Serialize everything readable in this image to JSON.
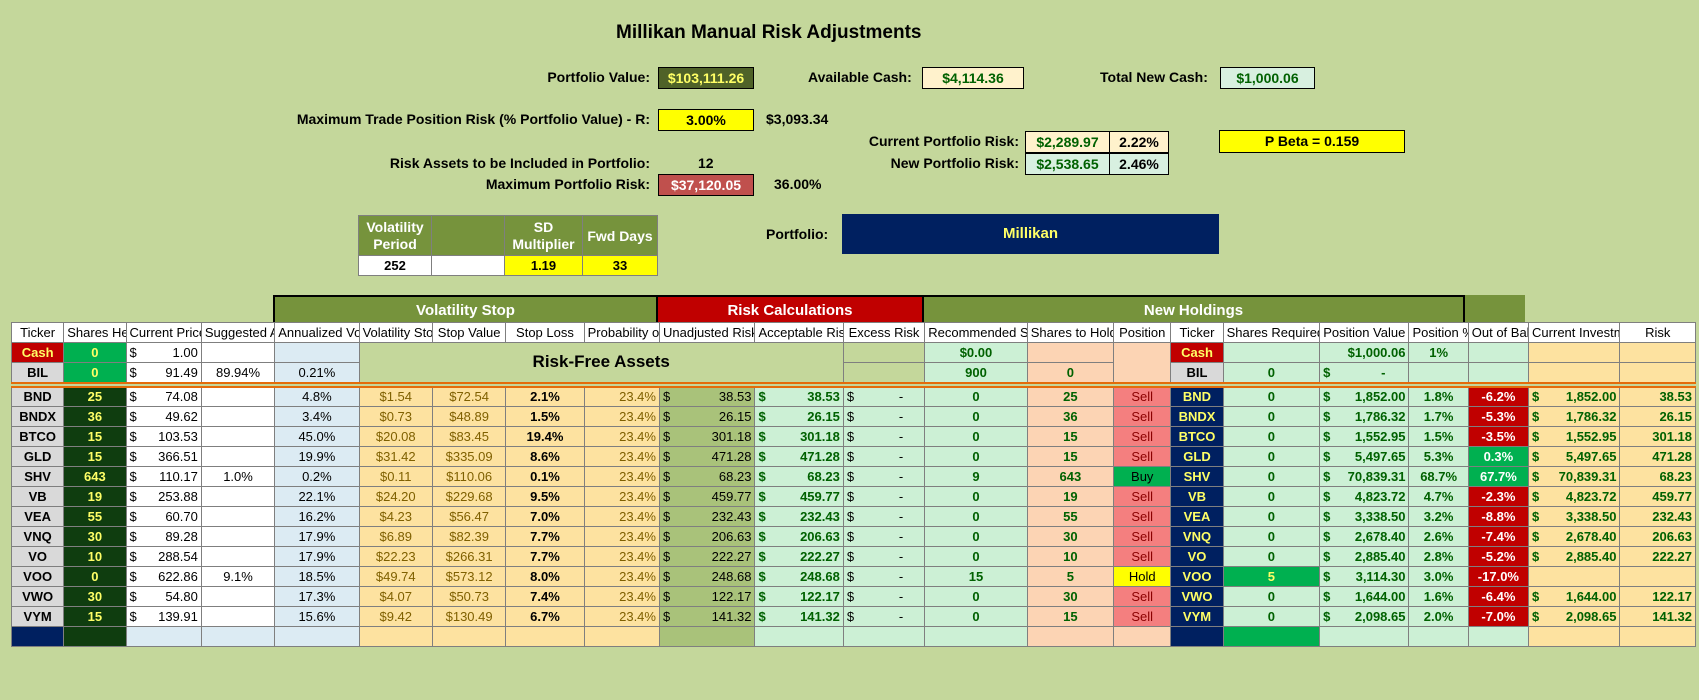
{
  "title": "Millikan Manual Risk Adjustments",
  "top": {
    "portfolio_value_label": "Portfolio Value:",
    "portfolio_value": "$103,111.26",
    "available_cash_label": "Available Cash:",
    "available_cash": "$4,114.36",
    "total_new_cash_label": "Total New Cash:",
    "total_new_cash": "$1,000.06",
    "max_trade_label": "Maximum Trade Position Risk (% Portfolio Value) - R:",
    "max_trade_pct": "3.00%",
    "max_trade_amt": "$3,093.34",
    "risk_assets_label": "Risk Assets to be Included in Portfolio:",
    "risk_assets": "12",
    "max_portfolio_risk_label": "Maximum Portfolio Risk:",
    "max_portfolio_risk": "$37,120.05",
    "max_portfolio_risk_pct": "36.00%",
    "current_risk_label": "Current Portfolio Risk:",
    "current_risk": "$2,289.97",
    "current_risk_pct": "2.22%",
    "new_risk_label": "New Portfolio Risk:",
    "new_risk": "$2,538.65",
    "new_risk_pct": "2.46%",
    "pbeta": "P Beta = 0.159",
    "portfolio_label": "Portfolio:",
    "portfolio_name": "Millikan"
  },
  "params": {
    "h1": "Volatility Period",
    "h2": "",
    "h3": "SD Multiplier",
    "h4": "Fwd Days",
    "v1": "252",
    "v2": "",
    "v3": "1.19",
    "v4": "33"
  },
  "groups": {
    "vol_stop": "Volatility Stop",
    "risk_calc": "Risk Calculations",
    "new_holdings": "New Holdings"
  },
  "headers": [
    "Ticker",
    "Shares Held",
    "Current Price",
    "Suggested Allocation",
    "Annualized Volatility",
    "Volatility Stop",
    "Stop Value",
    "Stop Loss",
    "Probability of Stop",
    "Unadjusted Risk",
    "Acceptable Risk",
    "Excess Risk",
    "Recommended Shares from Auto",
    "Shares to Hold",
    "Position",
    "Ticker",
    "Shares Required",
    "Position Value",
    "Position %",
    "Out of Balance",
    "Current Investments",
    "Risk"
  ],
  "riskfree_label": "Risk-Free Assets",
  "cash_row": {
    "ticker": "Cash",
    "shares": "0",
    "price": "1.00",
    "rec": "$0.00",
    "ticker2": "Cash",
    "pos_value": "$1,000.06",
    "pos_pct": "1%"
  },
  "bil_row": {
    "ticker": "BIL",
    "shares": "0",
    "price": "91.49",
    "alloc": "89.94%",
    "vol": "0.21%",
    "rec": "900",
    "hold": "0",
    "ticker2": "BIL",
    "req": "0",
    "pos_value": "-"
  },
  "rows": [
    {
      "t": "BND",
      "sh": "25",
      "pr": "74.08",
      "al": "",
      "vol": "4.8%",
      "vs": "$1.54",
      "sv": "$72.54",
      "sl": "2.1%",
      "ps": "23.4%",
      "ur": "38.53",
      "ar": "38.53",
      "er": "-",
      "rec": "0",
      "hold": "25",
      "pos": "Sell",
      "req": "0",
      "pv": "1,852.00",
      "pp": "1.8%",
      "ob": "-6.2%",
      "ci": "1,852.00",
      "rk": "38.53"
    },
    {
      "t": "BNDX",
      "sh": "36",
      "pr": "49.62",
      "al": "",
      "vol": "3.4%",
      "vs": "$0.73",
      "sv": "$48.89",
      "sl": "1.5%",
      "ps": "23.4%",
      "ur": "26.15",
      "ar": "26.15",
      "er": "-",
      "rec": "0",
      "hold": "36",
      "pos": "Sell",
      "req": "0",
      "pv": "1,786.32",
      "pp": "1.7%",
      "ob": "-5.3%",
      "ci": "1,786.32",
      "rk": "26.15"
    },
    {
      "t": "BTCO",
      "sh": "15",
      "pr": "103.53",
      "al": "",
      "vol": "45.0%",
      "vs": "$20.08",
      "sv": "$83.45",
      "sl": "19.4%",
      "ps": "23.4%",
      "ur": "301.18",
      "ar": "301.18",
      "er": "-",
      "rec": "0",
      "hold": "15",
      "pos": "Sell",
      "req": "0",
      "pv": "1,552.95",
      "pp": "1.5%",
      "ob": "-3.5%",
      "ci": "1,552.95",
      "rk": "301.18"
    },
    {
      "t": "GLD",
      "sh": "15",
      "pr": "366.51",
      "al": "",
      "vol": "19.9%",
      "vs": "$31.42",
      "sv": "$335.09",
      "sl": "8.6%",
      "ps": "23.4%",
      "ur": "471.28",
      "ar": "471.28",
      "er": "-",
      "rec": "0",
      "hold": "15",
      "pos": "Sell",
      "req": "0",
      "pv": "5,497.65",
      "pp": "5.3%",
      "ob": "0.3%",
      "ci": "5,497.65",
      "rk": "471.28"
    },
    {
      "t": "SHV",
      "sh": "643",
      "pr": "110.17",
      "al": "1.0%",
      "vol": "0.2%",
      "vs": "$0.11",
      "sv": "$110.06",
      "sl": "0.1%",
      "ps": "23.4%",
      "ur": "68.23",
      "ar": "68.23",
      "er": "-",
      "rec": "9",
      "hold": "643",
      "pos": "Buy",
      "req": "0",
      "pv": "70,839.31",
      "pp": "68.7%",
      "ob": "67.7%",
      "ci": "70,839.31",
      "rk": "68.23"
    },
    {
      "t": "VB",
      "sh": "19",
      "pr": "253.88",
      "al": "",
      "vol": "22.1%",
      "vs": "$24.20",
      "sv": "$229.68",
      "sl": "9.5%",
      "ps": "23.4%",
      "ur": "459.77",
      "ar": "459.77",
      "er": "-",
      "rec": "0",
      "hold": "19",
      "pos": "Sell",
      "req": "0",
      "pv": "4,823.72",
      "pp": "4.7%",
      "ob": "-2.3%",
      "ci": "4,823.72",
      "rk": "459.77"
    },
    {
      "t": "VEA",
      "sh": "55",
      "pr": "60.70",
      "al": "",
      "vol": "16.2%",
      "vs": "$4.23",
      "sv": "$56.47",
      "sl": "7.0%",
      "ps": "23.4%",
      "ur": "232.43",
      "ar": "232.43",
      "er": "-",
      "rec": "0",
      "hold": "55",
      "pos": "Sell",
      "req": "0",
      "pv": "3,338.50",
      "pp": "3.2%",
      "ob": "-8.8%",
      "ci": "3,338.50",
      "rk": "232.43"
    },
    {
      "t": "VNQ",
      "sh": "30",
      "pr": "89.28",
      "al": "",
      "vol": "17.9%",
      "vs": "$6.89",
      "sv": "$82.39",
      "sl": "7.7%",
      "ps": "23.4%",
      "ur": "206.63",
      "ar": "206.63",
      "er": "-",
      "rec": "0",
      "hold": "30",
      "pos": "Sell",
      "req": "0",
      "pv": "2,678.40",
      "pp": "2.6%",
      "ob": "-7.4%",
      "ci": "2,678.40",
      "rk": "206.63"
    },
    {
      "t": "VO",
      "sh": "10",
      "pr": "288.54",
      "al": "",
      "vol": "17.9%",
      "vs": "$22.23",
      "sv": "$266.31",
      "sl": "7.7%",
      "ps": "23.4%",
      "ur": "222.27",
      "ar": "222.27",
      "er": "-",
      "rec": "0",
      "hold": "10",
      "pos": "Sell",
      "req": "0",
      "pv": "2,885.40",
      "pp": "2.8%",
      "ob": "-5.2%",
      "ci": "2,885.40",
      "rk": "222.27"
    },
    {
      "t": "VOO",
      "sh": "0",
      "pr": "622.86",
      "al": "9.1%",
      "vol": "18.5%",
      "vs": "$49.74",
      "sv": "$573.12",
      "sl": "8.0%",
      "ps": "23.4%",
      "ur": "248.68",
      "ar": "248.68",
      "er": "-",
      "rec": "15",
      "hold": "5",
      "pos": "Hold",
      "req": "5",
      "pv": "3,114.30",
      "pp": "3.0%",
      "ob": "-17.0%",
      "ci": "",
      "rk": ""
    },
    {
      "t": "VWO",
      "sh": "30",
      "pr": "54.80",
      "al": "",
      "vol": "17.3%",
      "vs": "$4.07",
      "sv": "$50.73",
      "sl": "7.4%",
      "ps": "23.4%",
      "ur": "122.17",
      "ar": "122.17",
      "er": "-",
      "rec": "0",
      "hold": "30",
      "pos": "Sell",
      "req": "0",
      "pv": "1,644.00",
      "pp": "1.6%",
      "ob": "-6.4%",
      "ci": "1,644.00",
      "rk": "122.17"
    },
    {
      "t": "VYM",
      "sh": "15",
      "pr": "139.91",
      "al": "",
      "vol": "15.6%",
      "vs": "$9.42",
      "sv": "$130.49",
      "sl": "6.7%",
      "ps": "23.4%",
      "ur": "141.32",
      "ar": "141.32",
      "er": "-",
      "rec": "0",
      "hold": "15",
      "pos": "Sell",
      "req": "0",
      "pv": "2,098.65",
      "pp": "2.0%",
      "ob": "-7.0%",
      "ci": "2,098.65",
      "rk": "141.32"
    }
  ],
  "colors": {
    "background": "#c4d79b",
    "red": "#c00000",
    "navy": "#002060",
    "yellow": "#ffff00",
    "darkgreen": "#0f3d0f"
  }
}
